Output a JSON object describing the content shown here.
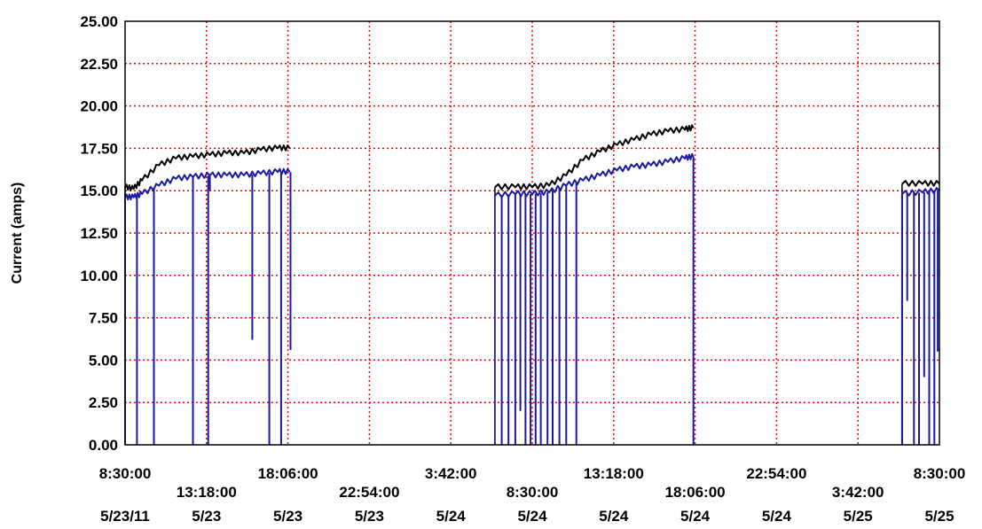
{
  "chart_data": {
    "type": "line",
    "ylabel": "Current (amps)",
    "ylim": [
      0,
      25
    ],
    "y_ticks": [
      "0.00",
      "2.50",
      "5.00",
      "7.50",
      "10.00",
      "12.50",
      "15.00",
      "17.50",
      "20.00",
      "22.50",
      "25.00"
    ],
    "x_range_hours": [
      0,
      48
    ],
    "x_ticks": [
      {
        "hour": 0,
        "time": "8:30:00",
        "date": "5/23/11"
      },
      {
        "hour": 4.8,
        "time": "13:18:00",
        "date": "5/23"
      },
      {
        "hour": 9.6,
        "time": "18:06:00",
        "date": "5/23"
      },
      {
        "hour": 14.4,
        "time": "22:54:00",
        "date": "5/23"
      },
      {
        "hour": 19.2,
        "time": "3:42:00",
        "date": "5/24"
      },
      {
        "hour": 24,
        "time": "8:30:00",
        "date": "5/24"
      },
      {
        "hour": 28.8,
        "time": "13:18:00",
        "date": "5/24"
      },
      {
        "hour": 33.6,
        "time": "18:06:00",
        "date": "5/24"
      },
      {
        "hour": 38.4,
        "time": "22:54:00",
        "date": "5/24"
      },
      {
        "hour": 43.2,
        "time": "3:42:00",
        "date": "5/25"
      },
      {
        "hour": 48,
        "time": "8:30:00",
        "date": "5/25"
      }
    ],
    "grid": true,
    "grid_color": "#ff0000",
    "series": [
      {
        "color": "#000000",
        "points": [
          [
            0,
            15.2
          ],
          [
            0.5,
            15.1
          ],
          [
            1,
            15.6
          ],
          [
            2,
            16.5
          ],
          [
            3,
            16.9
          ],
          [
            4,
            17.0
          ],
          [
            5,
            17.1
          ],
          [
            6,
            17.2
          ],
          [
            7,
            17.2
          ],
          [
            8,
            17.4
          ],
          [
            9,
            17.5
          ],
          [
            9.7,
            17.5
          ],
          [
            21.8,
            15.2
          ],
          [
            23,
            15.2
          ],
          [
            24,
            15.2
          ],
          [
            25,
            15.3
          ],
          [
            26,
            15.9
          ],
          [
            27,
            16.8
          ],
          [
            28,
            17.3
          ],
          [
            29,
            17.7
          ],
          [
            30,
            18.0
          ],
          [
            31,
            18.3
          ],
          [
            32,
            18.5
          ],
          [
            33,
            18.6
          ],
          [
            33.5,
            18.7
          ],
          [
            45.8,
            15.4
          ],
          [
            47,
            15.4
          ],
          [
            48,
            15.4
          ]
        ]
      },
      {
        "color": "#1a1aa0",
        "points": [
          [
            0,
            14.6
          ],
          [
            0.5,
            14.6
          ],
          [
            1,
            14.8
          ],
          [
            2,
            15.3
          ],
          [
            3,
            15.7
          ],
          [
            4,
            15.8
          ],
          [
            5,
            15.9
          ],
          [
            6,
            15.9
          ],
          [
            7,
            15.9
          ],
          [
            8,
            16.0
          ],
          [
            9,
            16.1
          ],
          [
            9.7,
            16.1
          ],
          [
            21.8,
            14.7
          ],
          [
            23,
            14.8
          ],
          [
            24,
            14.8
          ],
          [
            25,
            14.9
          ],
          [
            26,
            15.3
          ],
          [
            27,
            15.6
          ],
          [
            28,
            15.9
          ],
          [
            29,
            16.2
          ],
          [
            30,
            16.4
          ],
          [
            31,
            16.5
          ],
          [
            32,
            16.7
          ],
          [
            33,
            16.9
          ],
          [
            33.5,
            17.0
          ],
          [
            45.8,
            14.8
          ],
          [
            47,
            14.9
          ],
          [
            48,
            15.0
          ]
        ],
        "drops": [
          [
            0.7,
            0
          ],
          [
            1.7,
            0
          ],
          [
            4.0,
            0
          ],
          [
            4.9,
            0
          ],
          [
            5.0,
            15.0
          ],
          [
            7.5,
            6.2
          ],
          [
            8.5,
            0
          ],
          [
            9.2,
            0
          ],
          [
            9.75,
            5.6
          ],
          [
            22.2,
            0
          ],
          [
            22.6,
            0
          ],
          [
            23.0,
            0
          ],
          [
            23.3,
            2.0
          ],
          [
            23.6,
            0
          ],
          [
            23.9,
            0
          ],
          [
            24.2,
            0
          ],
          [
            24.5,
            0
          ],
          [
            24.9,
            0
          ],
          [
            25.2,
            0
          ],
          [
            25.6,
            0
          ],
          [
            26.0,
            0
          ],
          [
            26.6,
            0
          ],
          [
            33.5,
            0
          ],
          [
            45.8,
            0
          ],
          [
            46.1,
            8.5
          ],
          [
            46.5,
            0
          ],
          [
            46.8,
            0
          ],
          [
            47.1,
            4.0
          ],
          [
            47.4,
            0
          ],
          [
            47.7,
            0
          ],
          [
            47.9,
            5.5
          ]
        ]
      }
    ]
  }
}
